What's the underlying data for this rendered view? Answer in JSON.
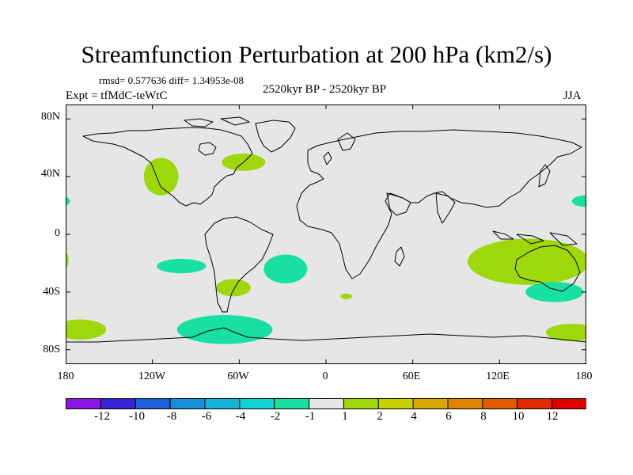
{
  "figure": {
    "title": "Streamfunction Perturbation at 200 hPa (km2/s)",
    "stats": "rmsd= 0.577636 diff= 1.34953e-08",
    "subtitle": "2520kyr BP - 2520kyr BP",
    "experiment": "Expt = tfMdC-teWtC",
    "season": "JJA"
  },
  "axes": {
    "lat_labels": [
      "80N",
      "40N",
      "0",
      "40S",
      "80S"
    ],
    "lon_labels": [
      "180",
      "120W",
      "60W",
      "0",
      "60E",
      "120E",
      "180"
    ]
  },
  "colorbar": {
    "labels": [
      "-12",
      "-10",
      "-8",
      "-6",
      "-4",
      "-2",
      "-1",
      "1",
      "2",
      "4",
      "6",
      "8",
      "10",
      "12"
    ],
    "colors": [
      "#8a16e6",
      "#3a22d6",
      "#1e5ed8",
      "#178ed8",
      "#14b3d6",
      "#14d3d4",
      "#17e0a0",
      "#e6e6e6",
      "#9ed80a",
      "#c8d000",
      "#d8a800",
      "#e08400",
      "#e05a00",
      "#e02a00",
      "#e00000"
    ]
  },
  "colors": {
    "land_ocean_background": "#e6e6e6",
    "positive_fill": "#9ed80a",
    "negative_fill": "#17e0a0"
  },
  "chart_data": {
    "type": "heatmap",
    "projection": "cylindrical-equidistant",
    "lon_range": [
      -180,
      180
    ],
    "lat_range": [
      -90,
      90
    ],
    "anomalies": [
      {
        "name": "north-pacific-positive",
        "sign": "positive",
        "lon": -114,
        "lat": 40,
        "rlon": 12,
        "rlat": 13
      },
      {
        "name": "north-atlantic-positive",
        "sign": "positive",
        "lon": -57,
        "lat": 50,
        "rlon": 15,
        "rlat": 6
      },
      {
        "name": "east-pacific-negative",
        "sign": "negative",
        "lon": -100,
        "lat": -22,
        "rlon": 17,
        "rlat": 5
      },
      {
        "name": "south-atlantic-negative",
        "sign": "negative",
        "lon": -28,
        "lat": -24,
        "rlon": 15,
        "rlat": 10
      },
      {
        "name": "south-america-positive",
        "sign": "positive",
        "lon": -64,
        "lat": -37,
        "rlon": 12,
        "rlat": 6
      },
      {
        "name": "southern-ocean-negative",
        "sign": "negative",
        "lon": -70,
        "lat": -66,
        "rlon": 33,
        "rlat": 10
      },
      {
        "name": "south-pacific-positive",
        "sign": "positive",
        "lon": -170,
        "lat": -66,
        "rlon": 18,
        "rlat": 7
      },
      {
        "name": "south-africa-positive",
        "sign": "positive",
        "lon": 14,
        "lat": -43,
        "rlon": 4,
        "rlat": 2
      },
      {
        "name": "australia-positive",
        "sign": "positive",
        "lon": 140,
        "lat": -19,
        "rlon": 42,
        "rlat": 16
      },
      {
        "name": "tasman-negative",
        "sign": "negative",
        "lon": 158,
        "lat": -40,
        "rlon": 20,
        "rlat": 7
      },
      {
        "name": "far-southwest-pacific-positive",
        "sign": "positive",
        "lon": 170,
        "lat": -68,
        "rlon": 18,
        "rlat": 6
      },
      {
        "name": "north-pacific-east-negative",
        "sign": "negative",
        "lon": 180,
        "lat": 23,
        "rlon": 10,
        "rlat": 4
      },
      {
        "name": "west-edge-negative",
        "sign": "negative",
        "lon": -181,
        "lat": 23,
        "rlon": 4,
        "rlat": 3
      },
      {
        "name": "west-edge-positive",
        "sign": "positive",
        "lon": -181,
        "lat": -18,
        "rlon": 3,
        "rlat": 6
      }
    ],
    "contour_levels": [
      -12,
      -10,
      -8,
      -6,
      -4,
      -2,
      -1,
      1,
      2,
      4,
      6,
      8,
      10,
      12
    ],
    "units": "km2/s"
  }
}
